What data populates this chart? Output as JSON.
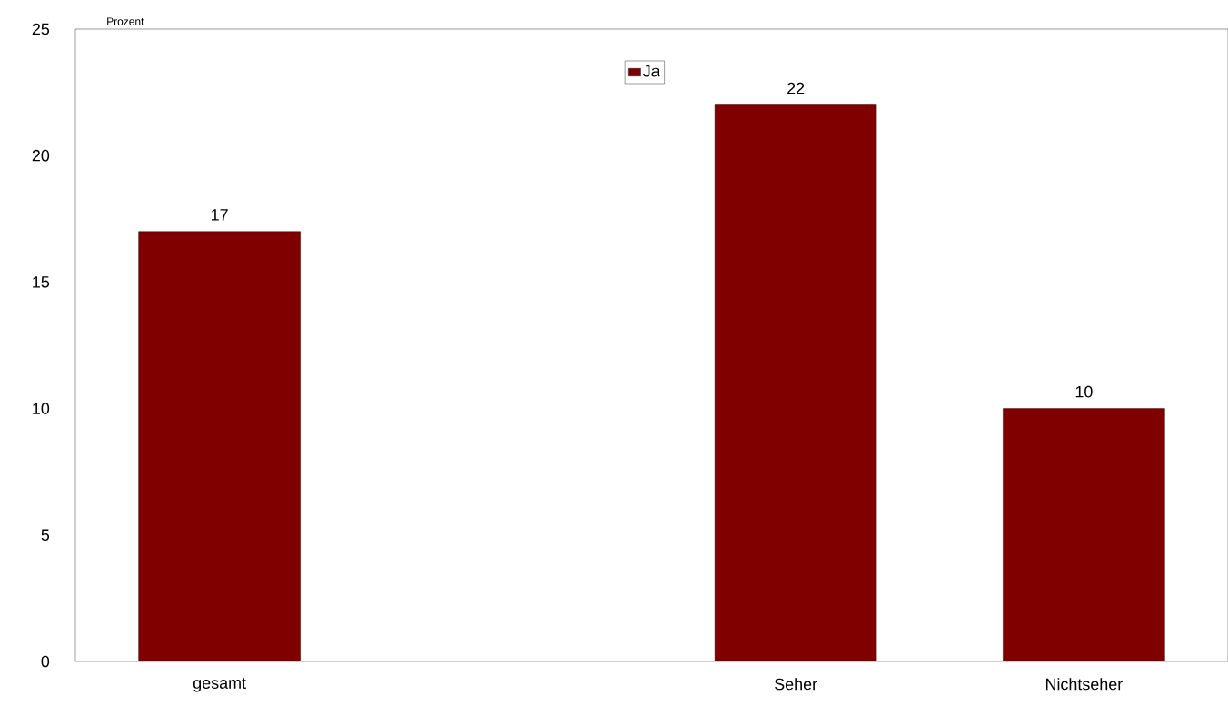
{
  "chart_data": {
    "type": "bar",
    "ylabel": "Prozent",
    "categories": [
      "gesamt",
      null,
      "Seher",
      "Nichtseher"
    ],
    "series": [
      {
        "name": "Ja",
        "color": "#800000",
        "values": [
          17,
          null,
          22,
          10
        ]
      }
    ],
    "ylim": [
      0,
      25
    ],
    "yticks": [
      0,
      5,
      10,
      15,
      20,
      25
    ],
    "data_labels": true,
    "legend": "top",
    "grid": false
  }
}
